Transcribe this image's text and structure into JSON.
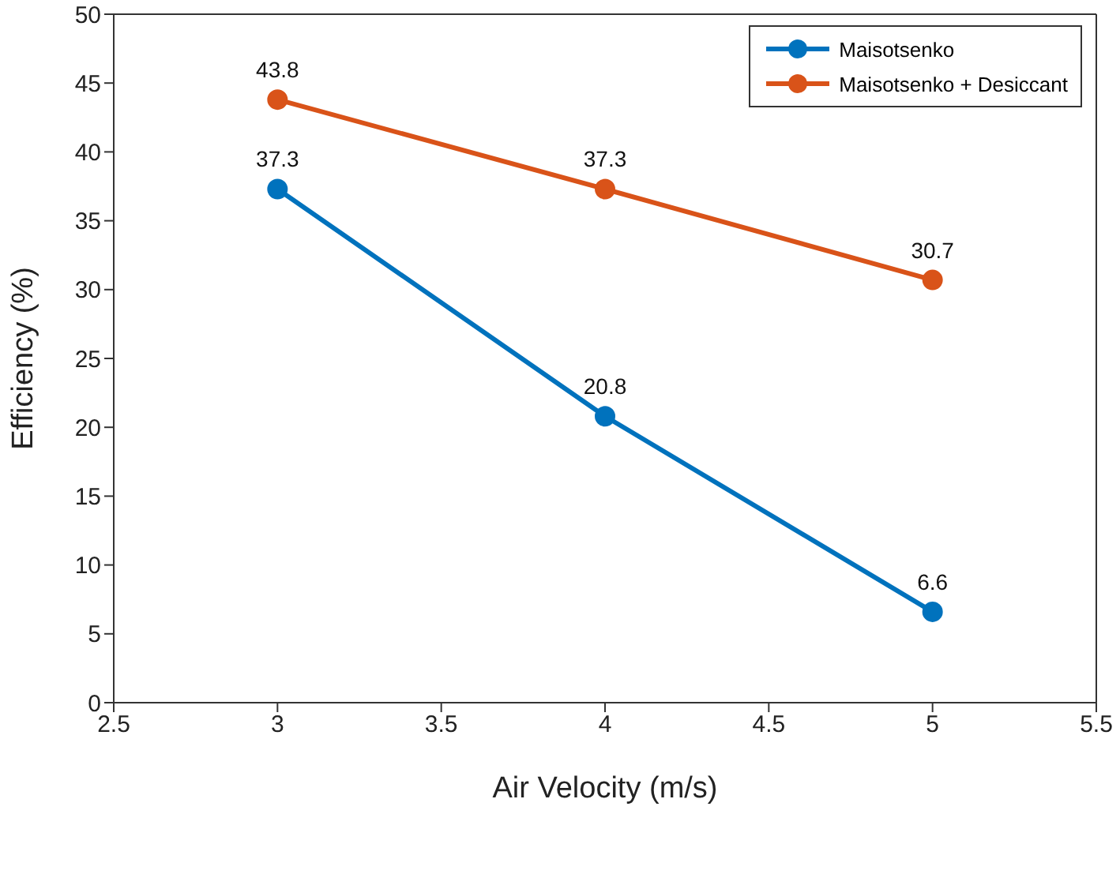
{
  "chart_data": {
    "type": "line",
    "xlabel": "Air Velocity (m/s)",
    "ylabel": "Efficiency (%)",
    "x": [
      3,
      4,
      5
    ],
    "series": [
      {
        "name": "Maisotsenko",
        "color": "#0072bd",
        "values": [
          37.3,
          20.8,
          6.6
        ]
      },
      {
        "name": "Maisotsenko + Desiccant",
        "color": "#d95319",
        "values": [
          43.8,
          37.3,
          30.7
        ]
      }
    ],
    "xlim": [
      2.5,
      5.5
    ],
    "xticks": [
      2.5,
      3,
      3.5,
      4,
      4.5,
      5,
      5.5
    ],
    "ylim": [
      0,
      50
    ],
    "yticks": [
      0,
      5,
      10,
      15,
      20,
      25,
      30,
      35,
      40,
      45,
      50
    ],
    "legend": "top right",
    "marker": "circle",
    "line_style": "solid",
    "data_labels": true
  }
}
